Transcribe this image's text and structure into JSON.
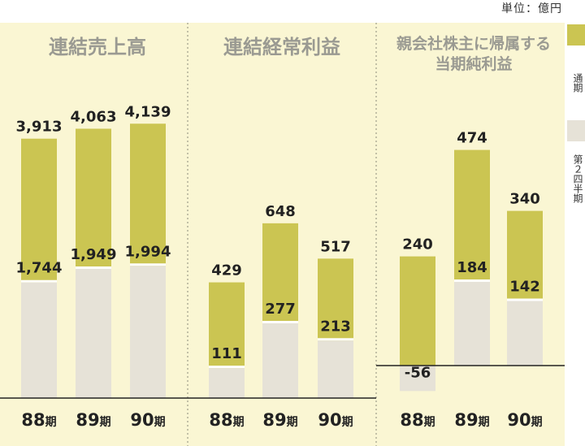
{
  "unit_label": "単位：億円",
  "legend": {
    "items": [
      {
        "label": "通期",
        "color": "#cbc552"
      },
      {
        "label": "第２四半期",
        "color": "#e6e2d7"
      }
    ]
  },
  "colors": {
    "background": "#faf6d3",
    "full_year": "#cbc552",
    "q2": "#e6e2d7",
    "separator": "#ffffff",
    "baseline": "#222222",
    "divider": "#8a8a7a",
    "title": "#9a9a92",
    "text": "#222222"
  },
  "chart_data": [
    {
      "type": "bar",
      "title": "連結売上高",
      "categories": [
        "88期",
        "89期",
        "90期"
      ],
      "series": [
        {
          "name": "通期",
          "values": [
            3913,
            4063,
            4139
          ],
          "labels": [
            "3,913",
            "4,063",
            "4,139"
          ]
        },
        {
          "name": "第２四半期",
          "values": [
            1744,
            1949,
            1994
          ],
          "labels": [
            "1,744",
            "1,949",
            "1,994"
          ]
        }
      ],
      "ylim": [
        0,
        5000
      ]
    },
    {
      "type": "bar",
      "title": "連結経常利益",
      "categories": [
        "88期",
        "89期",
        "90期"
      ],
      "series": [
        {
          "name": "通期",
          "values": [
            429,
            648,
            517
          ],
          "labels": [
            "429",
            "648",
            "517"
          ]
        },
        {
          "name": "第２四半期",
          "values": [
            111,
            277,
            213
          ],
          "labels": [
            "111",
            "277",
            "213"
          ]
        }
      ],
      "ylim": [
        0,
        800
      ]
    },
    {
      "type": "bar",
      "title": "親会社株主に帰属する当期純利益",
      "title_lines": [
        "親会社株主に帰属する",
        "当期純利益"
      ],
      "categories": [
        "88期",
        "89期",
        "90期"
      ],
      "series": [
        {
          "name": "通期",
          "values": [
            240,
            474,
            340
          ],
          "labels": [
            "240",
            "474",
            "340"
          ]
        },
        {
          "name": "第２四半期",
          "values": [
            -56,
            184,
            142
          ],
          "labels": [
            "-56",
            "184",
            "142"
          ]
        }
      ],
      "ylim": [
        -100,
        600
      ]
    }
  ]
}
